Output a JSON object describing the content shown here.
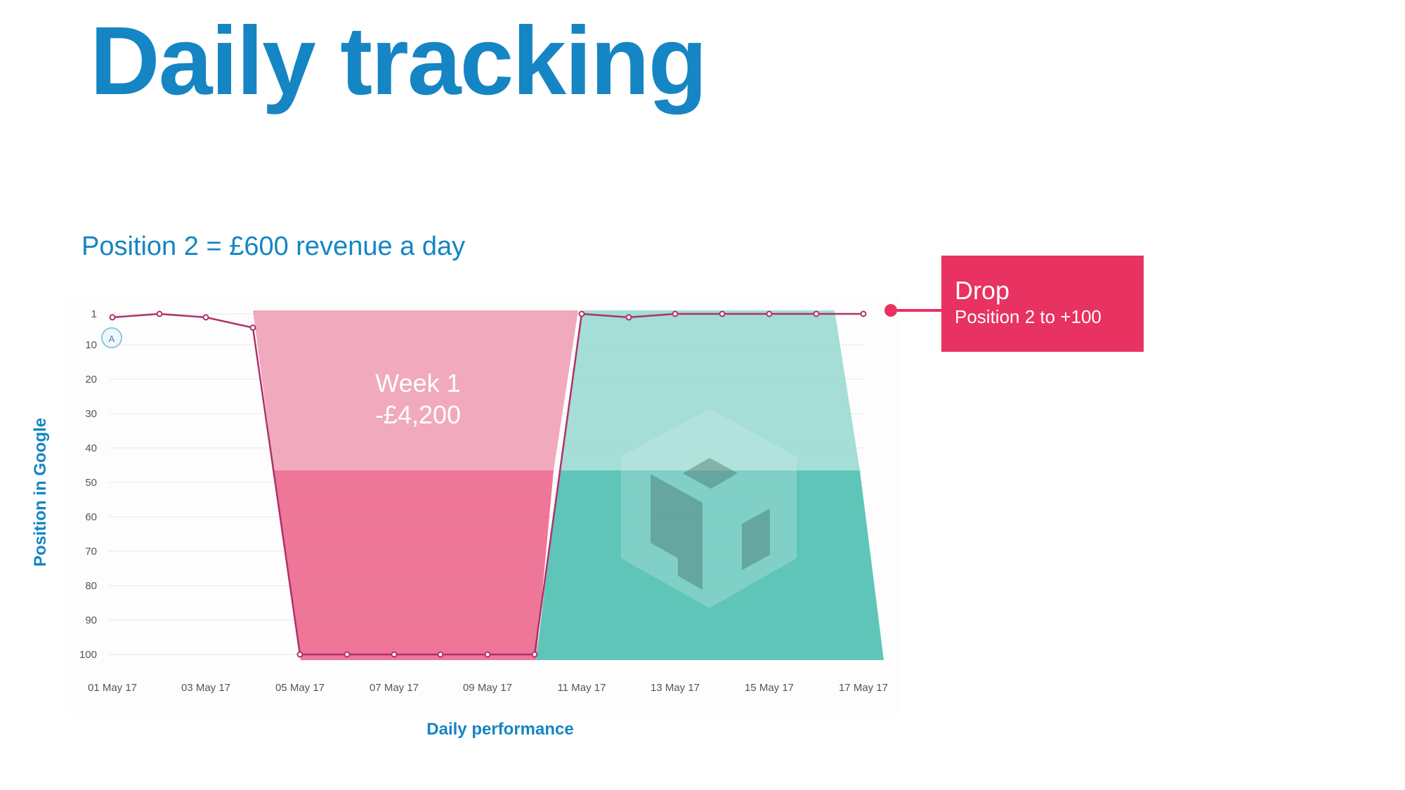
{
  "page": {
    "title": "Daily tracking",
    "subtitle": "Position 2 = £600 revenue a day"
  },
  "callout": {
    "title": "Drop",
    "text": "Position 2 to +100",
    "color": "#e83262"
  },
  "annotation": {
    "marker_label": "A",
    "week_label": "Week 1",
    "loss_label": "-£4,200"
  },
  "colors": {
    "title": "#1585c4",
    "line": "#b0306a",
    "loss_area_light": "#f0a0b6",
    "loss_area_dark": "#ec6f93",
    "recovery_area_light": "#9adad2",
    "recovery_area_dark": "#56c2b5",
    "grid": "#e8e8e8"
  },
  "chart_data": {
    "type": "line",
    "xlabel": "Daily performance",
    "ylabel": "Position in Google",
    "y_inverted": true,
    "ylim": [
      1,
      100
    ],
    "y_ticks": [
      1,
      10,
      20,
      30,
      40,
      50,
      60,
      70,
      80,
      90,
      100
    ],
    "x_tick_labels": [
      "01 May 17",
      "03 May 17",
      "05 May 17",
      "07 May 17",
      "09 May 17",
      "11 May 17",
      "13 May 17",
      "15 May 17",
      "17 May 17"
    ],
    "x": [
      "01 May 17",
      "02 May 17",
      "03 May 17",
      "04 May 17",
      "05 May 17",
      "06 May 17",
      "07 May 17",
      "08 May 17",
      "09 May 17",
      "10 May 17",
      "11 May 17",
      "12 May 17",
      "13 May 17",
      "14 May 17",
      "15 May 17",
      "16 May 17",
      "17 May 17"
    ],
    "series": [
      {
        "values": [
          2,
          1,
          2,
          5,
          100,
          100,
          100,
          100,
          100,
          100,
          1,
          2,
          1,
          1,
          1,
          1,
          1
        ]
      }
    ],
    "grid": true,
    "legend": "none"
  }
}
